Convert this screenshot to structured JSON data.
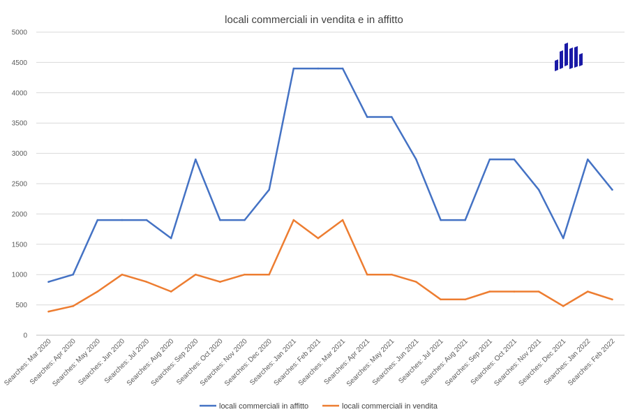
{
  "chart_data": {
    "type": "line",
    "title": "locali commerciali in vendita e in affitto",
    "xlabel": "",
    "ylabel": "",
    "ylim": [
      0,
      5000
    ],
    "yticks": [
      0,
      500,
      1000,
      1500,
      2000,
      2500,
      3000,
      3500,
      4000,
      4500,
      5000
    ],
    "grid": true,
    "legend_position": "bottom",
    "categories": [
      "Searches: Mar 2020",
      "Searches: Apr 2020",
      "Searches: May 2020",
      "Searches: Jun 2020",
      "Searches: Jul 2020",
      "Searches: Aug 2020",
      "Searches: Sep 2020",
      "Searches: Oct 2020",
      "Searches: Nov 2020",
      "Searches: Dec 2020",
      "Searches: Jan 2021",
      "Searches: Feb 2021",
      "Searches: Mar 2021",
      "Searches: Apr 2021",
      "Searches: May 2021",
      "Searches: Jun 2021",
      "Searches: Jul 2021",
      "Searches: Aug 2021",
      "Searches: Sep 2021",
      "Searches: Oct 2021",
      "Searches: Nov 2021",
      "Searches: Dec 2021",
      "Searches: Jan 2022",
      "Searches: Feb 2022"
    ],
    "series": [
      {
        "name": "locali commerciali in affitto",
        "color": "#4472c4",
        "values": [
          880,
          1000,
          1900,
          1900,
          1900,
          1600,
          2900,
          1900,
          1900,
          2400,
          4400,
          4400,
          4400,
          3600,
          3600,
          2900,
          1900,
          1900,
          2900,
          2900,
          2400,
          1600,
          2900,
          2400
        ]
      },
      {
        "name": "locali commerciali in vendita",
        "color": "#ed7d31",
        "values": [
          390,
          480,
          720,
          1000,
          880,
          720,
          1000,
          880,
          1000,
          1000,
          1900,
          1600,
          1900,
          1000,
          1000,
          880,
          590,
          590,
          720,
          720,
          720,
          480,
          720,
          590
        ]
      }
    ]
  },
  "logo": {
    "icon": "bar-logo-icon",
    "color": "#1a1aa6"
  }
}
